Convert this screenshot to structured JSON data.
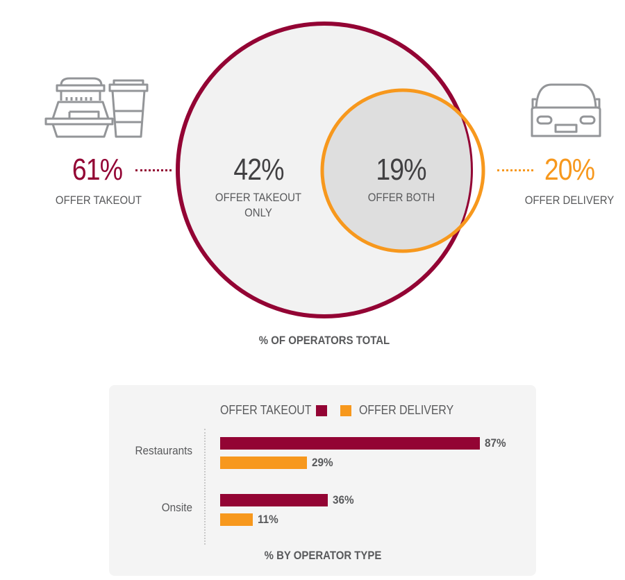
{
  "colors": {
    "takeout": "#930434",
    "delivery": "#f7981d",
    "overlap": "#dedede",
    "circle_fill": "#f2f2f2",
    "text": "#58595b"
  },
  "icons": {
    "takeout": "takeout-food-containers-icon",
    "delivery": "car-icon"
  },
  "venn": {
    "takeout_total": {
      "value": "61%",
      "label": "OFFER TAKEOUT"
    },
    "delivery_total": {
      "value": "20%",
      "label": "OFFER DELIVERY"
    },
    "takeout_only": {
      "value": "42%",
      "label_line1": "OFFER TAKEOUT",
      "label_line2": "ONLY"
    },
    "both": {
      "value": "19%",
      "label": "OFFER BOTH"
    },
    "title": "% OF OPERATORS TOTAL"
  },
  "chart_data": {
    "type": "bar",
    "orientation": "horizontal",
    "title": "% BY OPERATOR TYPE",
    "categories": [
      "Restaurants",
      "Onsite"
    ],
    "series": [
      {
        "name": "OFFER TAKEOUT",
        "values": [
          87,
          36
        ],
        "labels": [
          "87%",
          "36%"
        ],
        "color": "#930434"
      },
      {
        "name": "OFFER DELIVERY",
        "values": [
          29,
          11
        ],
        "labels": [
          "29%",
          "11%"
        ],
        "color": "#f7981d"
      }
    ],
    "xlim": [
      0,
      100
    ],
    "legend": "top",
    "grid": false
  }
}
